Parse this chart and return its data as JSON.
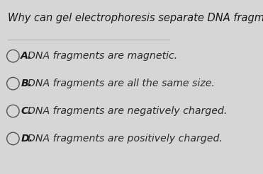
{
  "title": "Why can gel electrophoresis separate DNA fragments?",
  "options": [
    {
      "label": "A.",
      "text": "DNA fragments are magnetic."
    },
    {
      "label": "B.",
      "text": "DNA fragments are all the same size."
    },
    {
      "label": "C.",
      "text": "DNA fragments are negatively charged."
    },
    {
      "label": "D.",
      "text": "DNA fragments are positively charged."
    }
  ],
  "bg_color": "#d6d6d6",
  "title_color": "#1a1a1a",
  "option_label_color": "#1a1a1a",
  "option_text_color": "#2a2a2a",
  "circle_color": "#555555",
  "divider_color": "#aaaaaa",
  "title_fontsize": 10.5,
  "option_fontsize": 10.2,
  "fig_width": 3.71,
  "fig_height": 2.46
}
